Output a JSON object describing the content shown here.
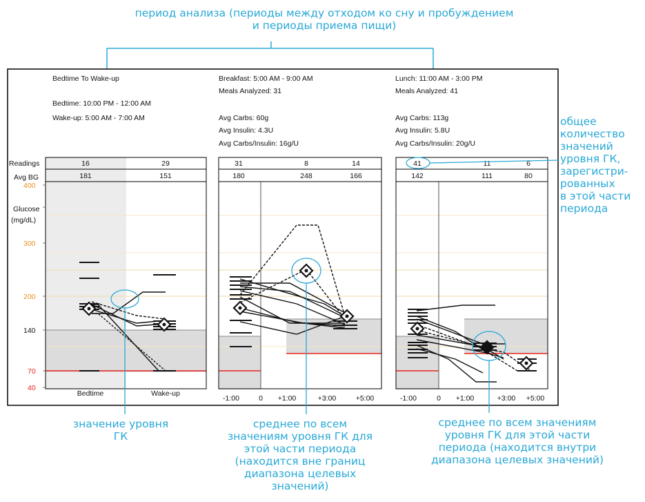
{
  "captions": {
    "top_line1": "период анализа (периоды между отходом ко сну и пробуждением",
    "top_line2": "и периоды приема пищи)",
    "right_lines": [
      "общее",
      "количество",
      "значений",
      "уровня ГК,",
      "зарегистри-",
      "рованных",
      "в этой части",
      "периода"
    ],
    "bottom_left_lines": [
      "значение уровня",
      "ГК"
    ],
    "bottom_mid_lines": [
      "среднее по всем",
      "значениям уровня ГК для",
      "этой части периода",
      "(находится вне границ",
      "диапазона целевых",
      "значений)"
    ],
    "bottom_right_lines": [
      "среднее по всем значениям",
      "уровня ГК для этой части",
      "периода (находится внутри",
      "диапазона целевых значений)"
    ]
  },
  "row_labels": {
    "readings": "Readings",
    "avg_bg": "Avg BG"
  },
  "y_axis": {
    "label_line1": "Glucose",
    "label_line2": "(mg/dL)",
    "ticks": [
      "400",
      "300",
      "200",
      "140",
      "70",
      "40"
    ]
  },
  "panels": [
    {
      "title": "Bedtime To Wake-up",
      "info": [
        "Bedtime: 10:00 PM - 12:00 AM",
        "Wake-up: 5:00 AM - 7:00 AM"
      ],
      "readings": [
        "16",
        "29"
      ],
      "avg_bg": [
        "181",
        "151"
      ],
      "x_labels": [
        "Bedtime",
        "Wake-up"
      ]
    },
    {
      "title": "Breakfast: 5:00 AM - 9:00 AM",
      "info": [
        "Meals Analyzed: 31",
        "",
        "Avg Carbs: 60g",
        "Avg Insulin: 4.3U",
        "Avg Carbs/Insulin: 16g/U"
      ],
      "readings": [
        "31",
        "8",
        "14"
      ],
      "avg_bg": [
        "180",
        "248",
        "166"
      ],
      "x_labels": [
        "-1:00",
        "0",
        "+1:00",
        "+3:00",
        "+5:00"
      ]
    },
    {
      "title": "Lunch: 11:00 AM - 3:00 PM",
      "info": [
        "Meals Analyzed: 41",
        "",
        "Avg Carbs: 113g",
        "Avg Insulin: 5.8U",
        "Avg Carbs/Insulin: 20g/U"
      ],
      "readings": [
        "41",
        "11",
        "6"
      ],
      "avg_bg": [
        "142",
        "111",
        "80"
      ],
      "x_labels": [
        "-1:00",
        "0",
        "+1:00",
        "+3:00",
        "+5:00"
      ]
    }
  ],
  "colors": {
    "callout": "#29a8d6",
    "target_low": "#e8231f",
    "grid_high": "#f5d9a8",
    "axis_orange": "#e8901a",
    "band_gray": "#dcdcdc"
  }
}
